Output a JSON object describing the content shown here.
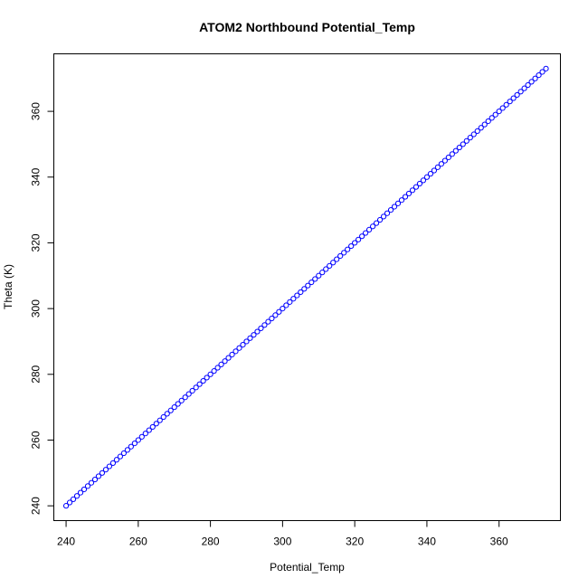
{
  "chart_data": {
    "type": "scatter",
    "title": "ATOM2 Northbound Potential_Temp",
    "xlabel": "Potential_Temp",
    "ylabel": "Theta (K)",
    "xlim": [
      236.6,
      377.0
    ],
    "ylim": [
      235.5,
      377.5
    ],
    "xticks": [
      240,
      260,
      280,
      300,
      320,
      340,
      360
    ],
    "yticks": [
      240,
      260,
      280,
      300,
      320,
      340,
      360
    ],
    "xtick_labels": [
      "240",
      "260",
      "280",
      "300",
      "320",
      "340",
      "360"
    ],
    "ytick_labels": [
      "240",
      "260",
      "280",
      "300",
      "320",
      "340",
      "360"
    ],
    "grid": false,
    "marker": "open-circle",
    "color": "#0000ff",
    "series": [
      {
        "x": [
          240,
          241,
          242,
          243,
          244,
          245,
          246,
          247,
          248,
          249,
          250,
          251,
          252,
          253,
          254,
          255,
          256,
          257,
          258,
          259,
          260,
          261,
          262,
          263,
          264,
          265,
          266,
          267,
          268,
          269,
          270,
          271,
          272,
          273,
          274,
          275,
          276,
          277,
          278,
          279,
          280,
          281,
          282,
          283,
          284,
          285,
          286,
          287,
          288,
          289,
          290,
          291,
          292,
          293,
          294,
          295,
          296,
          297,
          298,
          299,
          300,
          301,
          302,
          303,
          304,
          305,
          306,
          307,
          308,
          309,
          310,
          311,
          312,
          313,
          314,
          315,
          316,
          317,
          318,
          319,
          320,
          321,
          322,
          323,
          324,
          325,
          326,
          327,
          328,
          329,
          330,
          331,
          332,
          333,
          334,
          335,
          336,
          337,
          338,
          339,
          340,
          341,
          342,
          343,
          344,
          345,
          346,
          347,
          348,
          349,
          350,
          351,
          352,
          353,
          354,
          355,
          356,
          357,
          358,
          359,
          360,
          361,
          362,
          363,
          364,
          365,
          366,
          367,
          368,
          369,
          370,
          371,
          372,
          373
        ],
        "y": [
          240,
          241,
          242,
          243,
          244,
          245,
          246,
          247,
          248,
          249,
          250,
          251,
          252,
          253,
          254,
          255,
          256,
          257,
          258,
          259,
          260,
          261,
          262,
          263,
          264,
          265,
          266,
          267,
          268,
          269,
          270,
          271,
          272,
          273,
          274,
          275,
          276,
          277,
          278,
          279,
          280,
          281,
          282,
          283,
          284,
          285,
          286,
          287,
          288,
          289,
          290,
          291,
          292,
          293,
          294,
          295,
          296,
          297,
          298,
          299,
          300,
          301,
          302,
          303,
          304,
          305,
          306,
          307,
          308,
          309,
          310,
          311,
          312,
          313,
          314,
          315,
          316,
          317,
          318,
          319,
          320,
          321,
          322,
          323,
          324,
          325,
          326,
          327,
          328,
          329,
          330,
          331,
          332,
          333,
          334,
          335,
          336,
          337,
          338,
          339,
          340,
          341,
          342,
          343,
          344,
          345,
          346,
          347,
          348,
          349,
          350,
          351,
          352,
          353,
          354,
          355,
          356,
          357,
          358,
          359,
          360,
          361,
          362,
          363,
          364,
          365,
          366,
          367,
          368,
          369,
          370,
          371,
          372,
          373
        ]
      }
    ]
  }
}
